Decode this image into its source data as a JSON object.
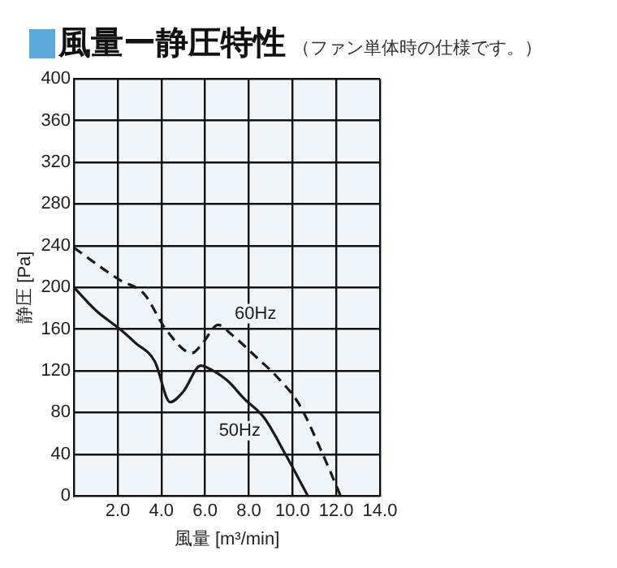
{
  "chart_data": {
    "type": "line",
    "title": "風量ー静圧特性",
    "subtitle": "（ファン単体時の仕様です。）",
    "xlabel": "風量 [m³/min]",
    "ylabel": "静圧 [Pa]",
    "xlim": [
      0,
      14
    ],
    "xticks": [
      {
        "value": 0,
        "label": null
      },
      {
        "value": 2,
        "label": "2.0"
      },
      {
        "value": 4,
        "label": "4.0"
      },
      {
        "value": 6,
        "label": "6.0"
      },
      {
        "value": 8,
        "label": "8.0"
      },
      {
        "value": 10,
        "label": "10.0"
      },
      {
        "value": 12,
        "label": "12.0"
      },
      {
        "value": 14,
        "label": "14.0"
      }
    ],
    "ylim": [
      0,
      400
    ],
    "yticks": [
      0,
      40,
      80,
      120,
      160,
      200,
      240,
      280,
      320,
      360,
      400
    ],
    "grid": true,
    "legend": false,
    "marker": "none",
    "series": [
      {
        "name": "50Hz",
        "color": "#1a1a1a",
        "line_style": "solid",
        "x": [
          0,
          1,
          2.1,
          2.8,
          3.7,
          4.4,
          5,
          5.8,
          6,
          7,
          7.8,
          8.7,
          9.7,
          10.7
        ],
        "values": [
          200,
          178,
          160,
          147,
          129,
          90,
          100,
          125,
          124,
          111,
          93,
          75,
          39,
          0
        ]
      },
      {
        "name": "60Hz",
        "color": "#1a1a1a",
        "line_style": "dashed",
        "x": [
          0,
          2.1,
          3.2,
          4.2,
          5.4,
          5.9,
          6.6,
          7.2,
          8.3,
          9.3,
          10.3,
          11.3,
          12.2
        ],
        "values": [
          238,
          207,
          194,
          160,
          137,
          147,
          164,
          155,
          134,
          114,
          88,
          44,
          0
        ]
      }
    ]
  }
}
